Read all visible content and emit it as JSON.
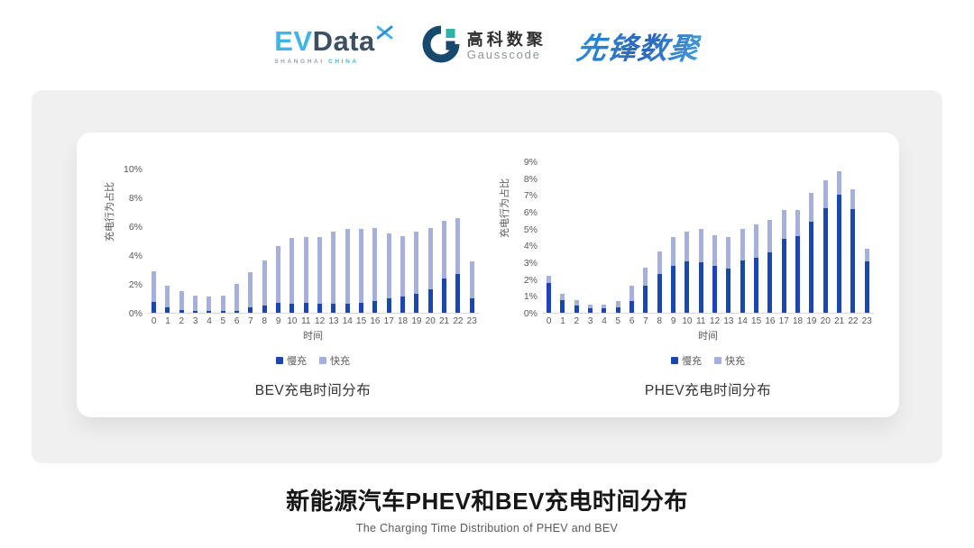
{
  "header": {
    "evdata": {
      "ev": "EV",
      "data": "Data",
      "sub_left": "SHANGHAI",
      "sub_right": "CHINA"
    },
    "gausscode": {
      "cn": "高科数聚",
      "en": "Gausscode"
    },
    "xianfeng": "先锋数聚"
  },
  "colors": {
    "slow": "#1A46B4",
    "fast": "#A5B0DD",
    "axis_line": "#D9D9D9",
    "tick_text": "#595959"
  },
  "chart_data": [
    {
      "type": "bar",
      "stacked": true,
      "title": "BEV充电时间分布",
      "xlabel": "时间",
      "ylabel": "充电行为占比",
      "unit": "%",
      "categories": [
        "0",
        "1",
        "2",
        "3",
        "4",
        "5",
        "6",
        "7",
        "8",
        "9",
        "10",
        "11",
        "12",
        "13",
        "14",
        "15",
        "16",
        "17",
        "18",
        "19",
        "20",
        "21",
        "22",
        "23"
      ],
      "ylim": [
        0,
        10
      ],
      "ytick_step": 2,
      "grid": false,
      "legend_position": "bottom",
      "series": [
        {
          "name": "慢充",
          "values": [
            0.75,
            0.35,
            0.2,
            0.1,
            0.1,
            0.1,
            0.15,
            0.35,
            0.5,
            0.7,
            0.65,
            0.7,
            0.6,
            0.6,
            0.65,
            0.7,
            0.8,
            1.0,
            1.1,
            1.3,
            1.6,
            2.4,
            2.7,
            1.0
          ]
        },
        {
          "name": "快充",
          "values": [
            2.15,
            1.55,
            1.3,
            1.1,
            1.0,
            1.1,
            1.85,
            2.45,
            3.1,
            3.9,
            4.55,
            4.55,
            4.65,
            5.05,
            5.15,
            5.1,
            5.05,
            4.5,
            4.2,
            4.3,
            4.3,
            3.95,
            3.85,
            2.55
          ]
        }
      ]
    },
    {
      "type": "bar",
      "stacked": true,
      "title": "PHEV充电时间分布",
      "xlabel": "时间",
      "ylabel": "充电行为占比",
      "unit": "%",
      "categories": [
        "0",
        "1",
        "2",
        "3",
        "4",
        "5",
        "6",
        "7",
        "8",
        "9",
        "10",
        "11",
        "12",
        "13",
        "14",
        "15",
        "16",
        "17",
        "18",
        "19",
        "20",
        "21",
        "22",
        "23"
      ],
      "ylim": [
        0,
        9
      ],
      "ytick_step": 1,
      "grid": false,
      "legend_position": "bottom",
      "series": [
        {
          "name": "慢充",
          "values": [
            1.75,
            0.75,
            0.45,
            0.25,
            0.25,
            0.3,
            0.7,
            1.6,
            2.3,
            2.8,
            3.05,
            3.0,
            2.8,
            2.65,
            3.1,
            3.25,
            3.6,
            4.4,
            4.55,
            5.4,
            6.2,
            7.0,
            6.15,
            3.05
          ]
        },
        {
          "name": "快充",
          "values": [
            0.45,
            0.4,
            0.3,
            0.25,
            0.25,
            0.4,
            0.9,
            1.1,
            1.35,
            1.7,
            1.75,
            2.0,
            1.8,
            1.85,
            1.9,
            2.0,
            1.9,
            1.7,
            1.55,
            1.7,
            1.7,
            1.4,
            1.2,
            0.75
          ]
        }
      ]
    }
  ],
  "footer": {
    "title": "新能源汽车PHEV和BEV充电时间分布",
    "subtitle": "The Charging Time Distribution of PHEV and BEV"
  }
}
